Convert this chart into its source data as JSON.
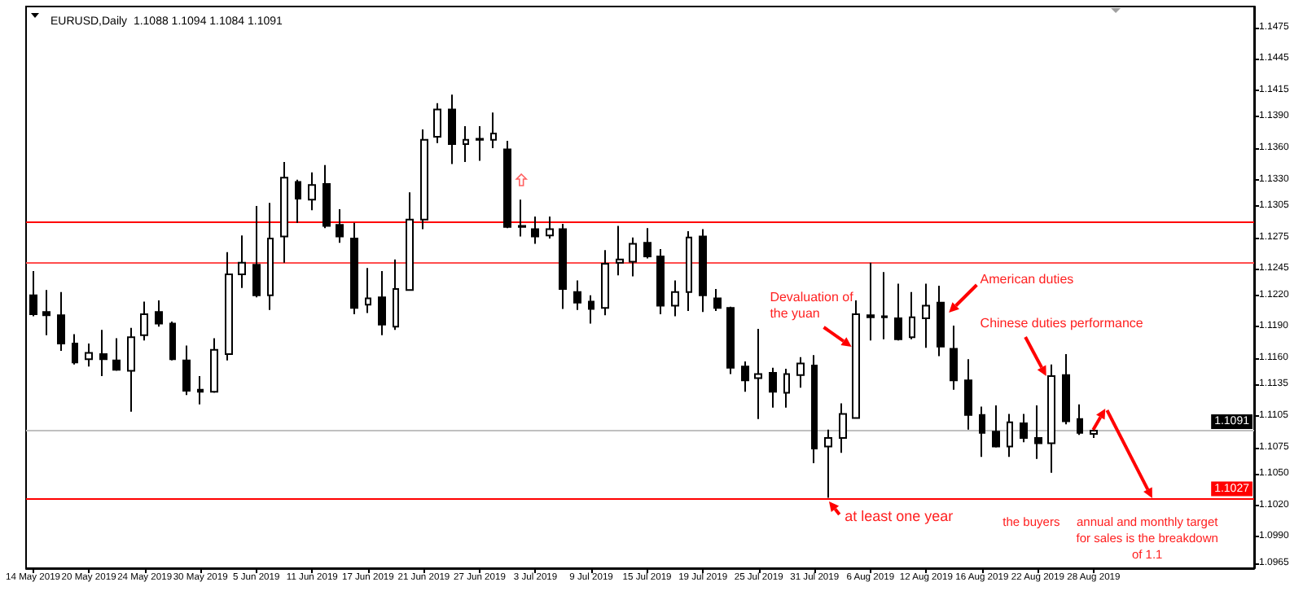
{
  "chart_data": {
    "type": "candlestick",
    "title": "EURUSD,Daily  1.1088 1.1094 1.1084 1.1091",
    "categories": [
      "14 May 2019",
      null,
      null,
      null,
      "20 May 2019",
      null,
      null,
      null,
      "24 May 2019",
      null,
      null,
      null,
      "30 May 2019",
      null,
      null,
      null,
      "5 Jun 2019",
      null,
      null,
      null,
      "11 Jun 2019",
      null,
      null,
      null,
      "17 Jun 2019",
      null,
      null,
      null,
      "21 Jun 2019",
      null,
      null,
      null,
      "27 Jun 2019",
      null,
      null,
      null,
      "3 Jul 2019",
      null,
      null,
      null,
      "9 Jul 2019",
      null,
      null,
      null,
      "15 Jul 2019",
      null,
      null,
      null,
      "19 Jul 2019",
      null,
      null,
      null,
      "25 Jul 2019",
      null,
      null,
      null,
      "31 Jul 2019",
      null,
      null,
      null,
      "6 Aug 2019",
      null,
      null,
      null,
      "12 Aug 2019",
      null,
      null,
      null,
      "16 Aug 2019",
      null,
      null,
      null,
      "22 Aug 2019",
      null,
      null,
      null,
      "28 Aug 2019",
      null,
      null,
      null,
      null,
      null,
      null,
      null,
      null,
      null,
      null,
      null
    ],
    "series": [
      {
        "color": "#000000",
        "ohlc": [
          [
            1.122,
            1.1243,
            1.12,
            1.1202
          ],
          [
            1.1204,
            1.1225,
            1.1182,
            1.1201
          ],
          [
            1.1201,
            1.1223,
            1.1167,
            1.1174
          ],
          [
            1.1174,
            1.1183,
            1.1154,
            1.1156
          ],
          [
            1.1159,
            1.1174,
            1.1152,
            1.1165
          ],
          [
            1.1164,
            1.1187,
            1.1143,
            1.1159
          ],
          [
            1.1158,
            1.1179,
            1.1148,
            1.1149
          ],
          [
            1.1148,
            1.1189,
            1.1109,
            1.118
          ],
          [
            1.1182,
            1.1214,
            1.1177,
            1.1202
          ],
          [
            1.1204,
            1.1215,
            1.119,
            1.1193
          ],
          [
            1.1193,
            1.1195,
            1.1158,
            1.1159
          ],
          [
            1.1158,
            1.1172,
            1.1125,
            1.1129
          ],
          [
            1.113,
            1.1143,
            1.1116,
            1.1128
          ],
          [
            1.1128,
            1.1179,
            1.1127,
            1.1168
          ],
          [
            1.1164,
            1.1261,
            1.1158,
            1.124
          ],
          [
            1.124,
            1.1277,
            1.1227,
            1.1251
          ],
          [
            1.1249,
            1.1305,
            1.1218,
            1.122
          ],
          [
            1.122,
            1.1308,
            1.1206,
            1.1274
          ],
          [
            1.1276,
            1.1347,
            1.1251,
            1.1332
          ],
          [
            1.1328,
            1.133,
            1.1289,
            1.1312
          ],
          [
            1.1311,
            1.1337,
            1.1301,
            1.1325
          ],
          [
            1.1326,
            1.1344,
            1.1284,
            1.1286
          ],
          [
            1.1287,
            1.1302,
            1.127,
            1.1276
          ],
          [
            1.1274,
            1.1289,
            1.1202,
            1.1208
          ],
          [
            1.1211,
            1.1246,
            1.1203,
            1.1217
          ],
          [
            1.1218,
            1.1243,
            1.1182,
            1.1192
          ],
          [
            1.119,
            1.1254,
            1.1187,
            1.1226
          ],
          [
            1.1225,
            1.1318,
            1.1225,
            1.1292
          ],
          [
            1.1292,
            1.1378,
            1.1283,
            1.1368
          ],
          [
            1.1371,
            1.1403,
            1.1365,
            1.1397
          ],
          [
            1.1397,
            1.1411,
            1.1345,
            1.1364
          ],
          [
            1.1364,
            1.1381,
            1.1347,
            1.1368
          ],
          [
            1.1369,
            1.1381,
            1.1348,
            1.1368
          ],
          [
            1.1368,
            1.1394,
            1.136,
            1.1374
          ],
          [
            1.1359,
            1.1367,
            1.1284,
            1.1285
          ],
          [
            1.1286,
            1.1311,
            1.1276,
            1.1285
          ],
          [
            1.1283,
            1.1295,
            1.1269,
            1.1276
          ],
          [
            1.1277,
            1.1295,
            1.1274,
            1.1283
          ],
          [
            1.1283,
            1.1288,
            1.1207,
            1.1226
          ],
          [
            1.1223,
            1.1234,
            1.1206,
            1.1213
          ],
          [
            1.1214,
            1.122,
            1.1193,
            1.1207
          ],
          [
            1.1208,
            1.1263,
            1.1201,
            1.125
          ],
          [
            1.1251,
            1.1286,
            1.1239,
            1.1254
          ],
          [
            1.1252,
            1.1275,
            1.1238,
            1.1269
          ],
          [
            1.127,
            1.1284,
            1.1255,
            1.1257
          ],
          [
            1.1257,
            1.1264,
            1.1202,
            1.121
          ],
          [
            1.121,
            1.1234,
            1.12,
            1.1223
          ],
          [
            1.1223,
            1.1281,
            1.1205,
            1.1275
          ],
          [
            1.1276,
            1.1283,
            1.1204,
            1.122
          ],
          [
            1.1217,
            1.1226,
            1.1205,
            1.1208
          ],
          [
            1.1208,
            1.1209,
            1.1145,
            1.1151
          ],
          [
            1.1152,
            1.1157,
            1.1128,
            1.1139
          ],
          [
            1.1141,
            1.1188,
            1.1102,
            1.1145
          ],
          [
            1.1146,
            1.1151,
            1.1113,
            1.1128
          ],
          [
            1.1127,
            1.115,
            1.1113,
            1.1145
          ],
          [
            1.1144,
            1.1161,
            1.1132,
            1.1155
          ],
          [
            1.1153,
            1.1163,
            1.106,
            1.1074
          ],
          [
            1.1076,
            1.1092,
            1.1027,
            1.1084
          ],
          [
            1.1084,
            1.1117,
            1.107,
            1.1107
          ],
          [
            1.1103,
            1.1215,
            1.1103,
            1.1202
          ],
          [
            1.1201,
            1.1251,
            1.1177,
            1.1199
          ],
          [
            1.12,
            1.1242,
            1.1178,
            1.1199
          ],
          [
            1.1198,
            1.1231,
            1.1177,
            1.1178
          ],
          [
            1.118,
            1.1223,
            1.1178,
            1.1199
          ],
          [
            1.1198,
            1.1231,
            1.117,
            1.121
          ],
          [
            1.1213,
            1.1229,
            1.1162,
            1.1171
          ],
          [
            1.1169,
            1.1191,
            1.113,
            1.1139
          ],
          [
            1.1139,
            1.1159,
            1.1092,
            1.1106
          ],
          [
            1.1106,
            1.1114,
            1.1066,
            1.1089
          ],
          [
            1.109,
            1.1115,
            1.1075,
            1.1076
          ],
          [
            1.1076,
            1.1107,
            1.1066,
            1.1099
          ],
          [
            1.1098,
            1.1107,
            1.108,
            1.1084
          ],
          [
            1.1084,
            1.1115,
            1.1064,
            1.1079
          ],
          [
            1.1079,
            1.1154,
            1.1051,
            1.1143
          ],
          [
            1.1144,
            1.1164,
            1.1097,
            1.11
          ],
          [
            1.1102,
            1.1116,
            1.1087,
            1.1089
          ],
          [
            1.1088,
            1.1094,
            1.1084,
            1.1091
          ],
          null,
          null,
          null,
          null,
          null,
          null,
          null,
          null,
          null,
          null,
          null
        ]
      }
    ],
    "ylim": [
      1.096,
      1.1495
    ],
    "yticks": [
      1.1475,
      1.1445,
      1.1415,
      {
        "value": 1.139,
        "label": "1.1390"
      },
      {
        "value": 1.136,
        "label": "1.1360"
      },
      {
        "value": 1.133,
        "label": "1.1330"
      },
      1.1305,
      1.1275,
      1.1245,
      {
        "value": 1.122,
        "label": "1.1220"
      },
      {
        "value": 1.119,
        "label": "1.1190"
      },
      {
        "value": 1.116,
        "label": "1.1160"
      },
      1.1135,
      1.1105,
      1.1075,
      {
        "value": 1.105,
        "label": "1.1050"
      },
      {
        "value": 1.102,
        "label": "1.1020"
      },
      {
        "value": 1.099,
        "label": "1.0990"
      },
      1.0965
    ],
    "ref_lines": [
      {
        "axis": "y",
        "value": 1.129,
        "color": "#ff0000"
      },
      {
        "axis": "y",
        "value": 1.1251,
        "color": "#ff4d4d"
      },
      {
        "axis": "y",
        "value": 1.1091,
        "label": "1.1091",
        "color": "#c0c0c0"
      },
      {
        "axis": "y",
        "value": 1.1027,
        "label": "1.1027",
        "color": "#ff0000"
      }
    ],
    "annotations": [
      "Devaluation of the yuan",
      "American duties",
      "Chinese duties performance",
      "at least one year",
      "the buyers",
      "annual and monthly target for sales is the breakdown of 1.1"
    ],
    "grid": false
  }
}
